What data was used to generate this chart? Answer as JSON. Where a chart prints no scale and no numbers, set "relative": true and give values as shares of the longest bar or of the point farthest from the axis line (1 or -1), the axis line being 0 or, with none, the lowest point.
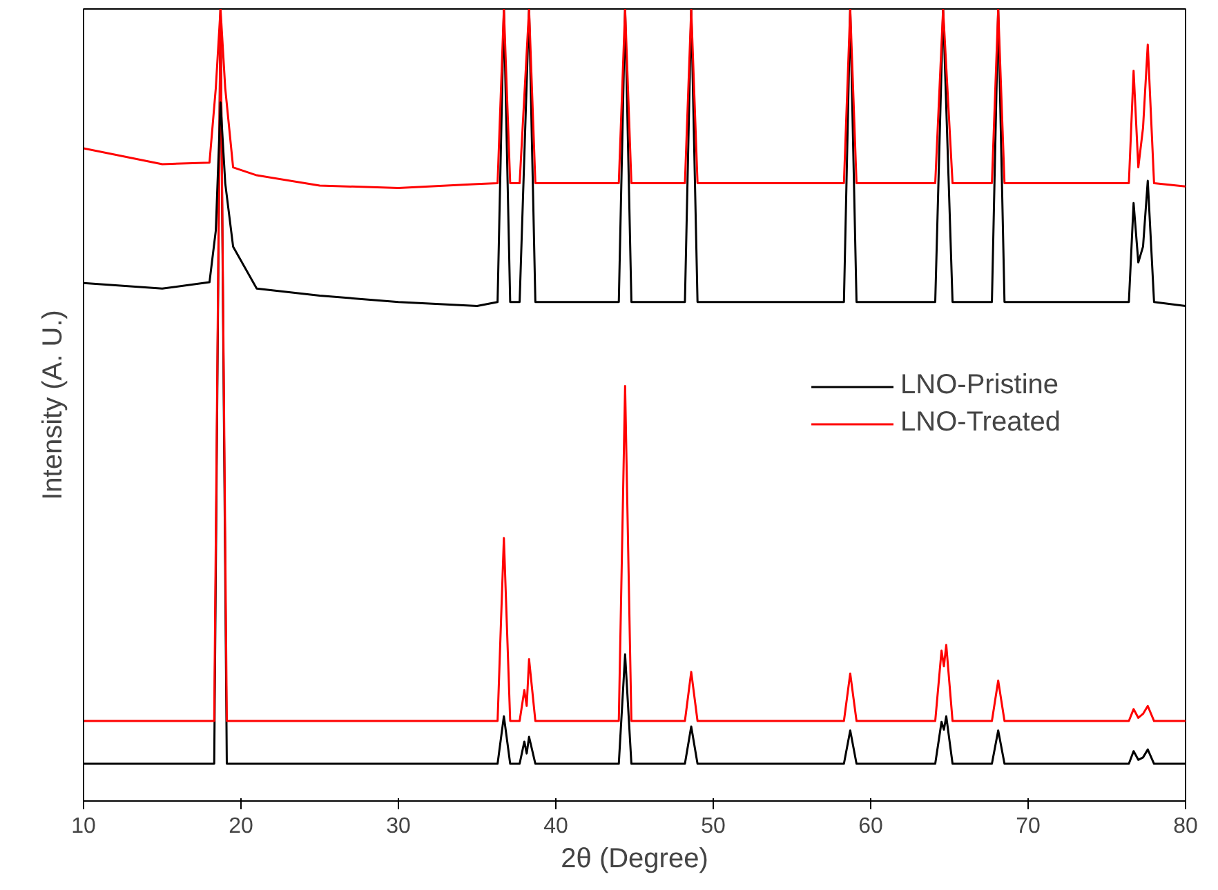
{
  "chart_data": {
    "type": "line",
    "relative": true,
    "xlabel": "2θ (Degree)",
    "ylabel": "Intensity (A. U.)",
    "xlim": [
      10,
      80
    ],
    "xticks": [
      10,
      20,
      30,
      40,
      50,
      60,
      70,
      80
    ],
    "grid": false,
    "legend": "right",
    "marker": "none",
    "line_style": "solid",
    "series": [
      {
        "name": "LNO-Pristine",
        "color": "#000000",
        "x": [
          10,
          18.3,
          18.7,
          19.1,
          36.3,
          36.7,
          37.1,
          37.7,
          38.0,
          38.15,
          38.3,
          38.7,
          44.0,
          44.4,
          44.8,
          48.2,
          48.6,
          49.0,
          58.3,
          58.7,
          59.1,
          64.1,
          64.5,
          64.65,
          64.8,
          65.2,
          67.7,
          68.1,
          68.5,
          76.4,
          76.7,
          77.0,
          77.3,
          77.6,
          78.0,
          80
        ],
        "values": [
          0.047,
          0.047,
          1,
          0.047,
          0.047,
          0.107,
          0.047,
          0.047,
          0.075,
          0.06,
          0.081,
          0.047,
          0.047,
          0.185,
          0.047,
          0.047,
          0.094,
          0.047,
          0.047,
          0.089,
          0.047,
          0.047,
          0.1,
          0.09,
          0.107,
          0.047,
          0.047,
          0.089,
          0.047,
          0.047,
          0.063,
          0.052,
          0.055,
          0.065,
          0.047,
          0.047
        ]
      },
      {
        "name": "LNO-Treated",
        "color": "#ff0000",
        "x": [
          10,
          18.3,
          18.7,
          19.1,
          36.3,
          36.7,
          37.1,
          37.7,
          38.0,
          38.15,
          38.3,
          38.7,
          44.0,
          44.4,
          44.8,
          48.2,
          48.6,
          49.0,
          58.3,
          58.7,
          59.1,
          64.1,
          64.5,
          64.65,
          64.8,
          65.2,
          67.7,
          68.1,
          68.5,
          76.4,
          76.7,
          77.0,
          77.3,
          77.6,
          78.0,
          80
        ],
        "values": [
          0.101,
          0.101,
          1,
          0.101,
          0.101,
          0.332,
          0.101,
          0.101,
          0.14,
          0.12,
          0.179,
          0.101,
          0.101,
          0.524,
          0.101,
          0.101,
          0.163,
          0.101,
          0.101,
          0.161,
          0.101,
          0.101,
          0.19,
          0.17,
          0.197,
          0.101,
          0.101,
          0.152,
          0.101,
          0.101,
          0.116,
          0.105,
          0.11,
          0.12,
          0.101,
          0.101
        ]
      },
      {
        "color": "#000000",
        "x": [
          10,
          15,
          18.0,
          18.4,
          18.7,
          19.0,
          19.5,
          21,
          25,
          30,
          35,
          36.3,
          36.7,
          37.1,
          37.7,
          38.3,
          38.7,
          44.0,
          44.4,
          44.8,
          48.2,
          48.6,
          49.0,
          58.3,
          58.7,
          59.1,
          64.1,
          64.6,
          65.2,
          67.7,
          68.1,
          68.5,
          76.4,
          76.7,
          77.0,
          77.3,
          77.6,
          78.0,
          80
        ],
        "values": [
          0.654,
          0.647,
          0.655,
          0.72,
          0.882,
          0.78,
          0.7,
          0.647,
          0.638,
          0.63,
          0.625,
          0.63,
          1,
          0.63,
          0.63,
          1,
          0.63,
          0.63,
          1,
          0.63,
          0.63,
          1,
          0.63,
          0.63,
          1,
          0.63,
          0.63,
          1,
          0.63,
          0.63,
          1,
          0.63,
          0.63,
          0.755,
          0.68,
          0.7,
          0.783,
          0.63,
          0.625
        ]
      },
      {
        "color": "#ff0000",
        "x": [
          10,
          15,
          18.0,
          18.4,
          18.7,
          19.0,
          19.5,
          21,
          25,
          30,
          35,
          36.3,
          36.7,
          37.1,
          37.7,
          38.3,
          38.7,
          44.0,
          44.4,
          44.8,
          48.2,
          48.6,
          49.0,
          58.3,
          58.7,
          59.1,
          64.1,
          64.6,
          65.2,
          67.7,
          68.1,
          68.5,
          76.4,
          76.7,
          77.0,
          77.3,
          77.6,
          78.0,
          80
        ],
        "values": [
          0.824,
          0.804,
          0.806,
          0.9,
          1,
          0.9,
          0.8,
          0.79,
          0.777,
          0.774,
          0.779,
          0.78,
          1,
          0.78,
          0.78,
          1,
          0.78,
          0.78,
          1,
          0.78,
          0.78,
          1,
          0.78,
          0.78,
          1,
          0.78,
          0.78,
          1,
          0.78,
          0.78,
          1,
          0.78,
          0.78,
          0.922,
          0.8,
          0.85,
          0.955,
          0.78,
          0.776
        ]
      }
    ]
  }
}
